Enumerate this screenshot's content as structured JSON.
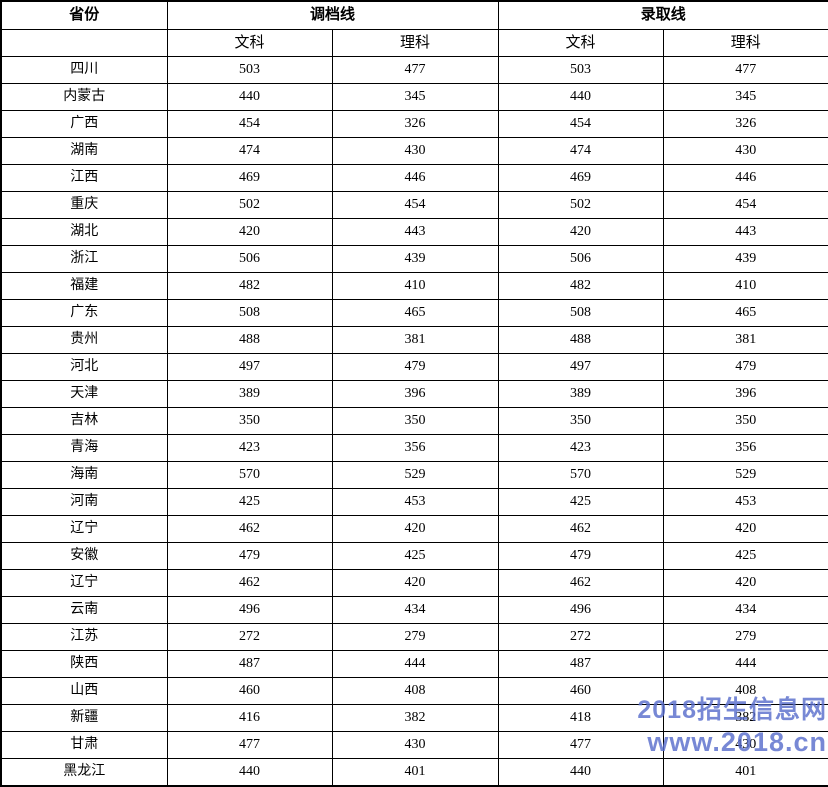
{
  "table": {
    "header": {
      "province": "省份",
      "diaodang_line": "调档线",
      "luqu_line": "录取线",
      "wenke": "文科",
      "like": "理科"
    },
    "rows": [
      {
        "province": "四川",
        "values": [
          "503",
          "477",
          "503",
          "477"
        ],
        "bold": [
          false,
          true,
          true,
          true
        ]
      },
      {
        "province": "内蒙古",
        "values": [
          "440",
          "345",
          "440",
          "345"
        ]
      },
      {
        "province": "广西",
        "values": [
          "454",
          "326",
          "454",
          "326"
        ]
      },
      {
        "province": "湖南",
        "values": [
          "474",
          "430",
          "474",
          "430"
        ]
      },
      {
        "province": "江西",
        "values": [
          "469",
          "446",
          "469",
          "446"
        ]
      },
      {
        "province": "重庆",
        "values": [
          "502",
          "454",
          "502",
          "454"
        ]
      },
      {
        "province": "湖北",
        "values": [
          "420",
          "443",
          "420",
          "443"
        ]
      },
      {
        "province": "浙江",
        "values": [
          "506",
          "439",
          "506",
          "439"
        ]
      },
      {
        "province": "福建",
        "values": [
          "482",
          "410",
          "482",
          "410"
        ]
      },
      {
        "province": "广东",
        "values": [
          "508",
          "465",
          "508",
          "465"
        ]
      },
      {
        "province": "贵州",
        "values": [
          "488",
          "381",
          "488",
          "381"
        ]
      },
      {
        "province": "河北",
        "values": [
          "497",
          "479",
          "497",
          "479"
        ]
      },
      {
        "province": "天津",
        "values": [
          "389",
          "396",
          "389",
          "396"
        ]
      },
      {
        "province": "吉林",
        "values": [
          "350",
          "350",
          "350",
          "350"
        ]
      },
      {
        "province": "青海",
        "values": [
          "423",
          "356",
          "423",
          "356"
        ]
      },
      {
        "province": "海南",
        "values": [
          "570",
          "529",
          "570",
          "529"
        ]
      },
      {
        "province": "河南",
        "values": [
          "425",
          "453",
          "425",
          "453"
        ]
      },
      {
        "province": "辽宁",
        "values": [
          "462",
          "420",
          "462",
          "420"
        ]
      },
      {
        "province": "安徽",
        "values": [
          "479",
          "425",
          "479",
          "425"
        ]
      },
      {
        "province": "辽宁",
        "values": [
          "462",
          "420",
          "462",
          "420"
        ]
      },
      {
        "province": "云南",
        "values": [
          "496",
          "434",
          "496",
          "434"
        ]
      },
      {
        "province": "江苏",
        "values": [
          "272",
          "279",
          "272",
          "279"
        ]
      },
      {
        "province": "陕西",
        "values": [
          "487",
          "444",
          "487",
          "444"
        ]
      },
      {
        "province": "山西",
        "values": [
          "460",
          "408",
          "460",
          "408"
        ]
      },
      {
        "province": "新疆",
        "values": [
          "416",
          "382",
          "418",
          "382"
        ]
      },
      {
        "province": "甘肃",
        "values": [
          "477",
          "430",
          "477",
          "430"
        ]
      },
      {
        "province": "黑龙江",
        "values": [
          "440",
          "401",
          "440",
          "401"
        ]
      }
    ]
  },
  "watermark": {
    "line1": "2018招生信息网",
    "line2": "www.2018.cn",
    "color": "#5a6ecd"
  }
}
